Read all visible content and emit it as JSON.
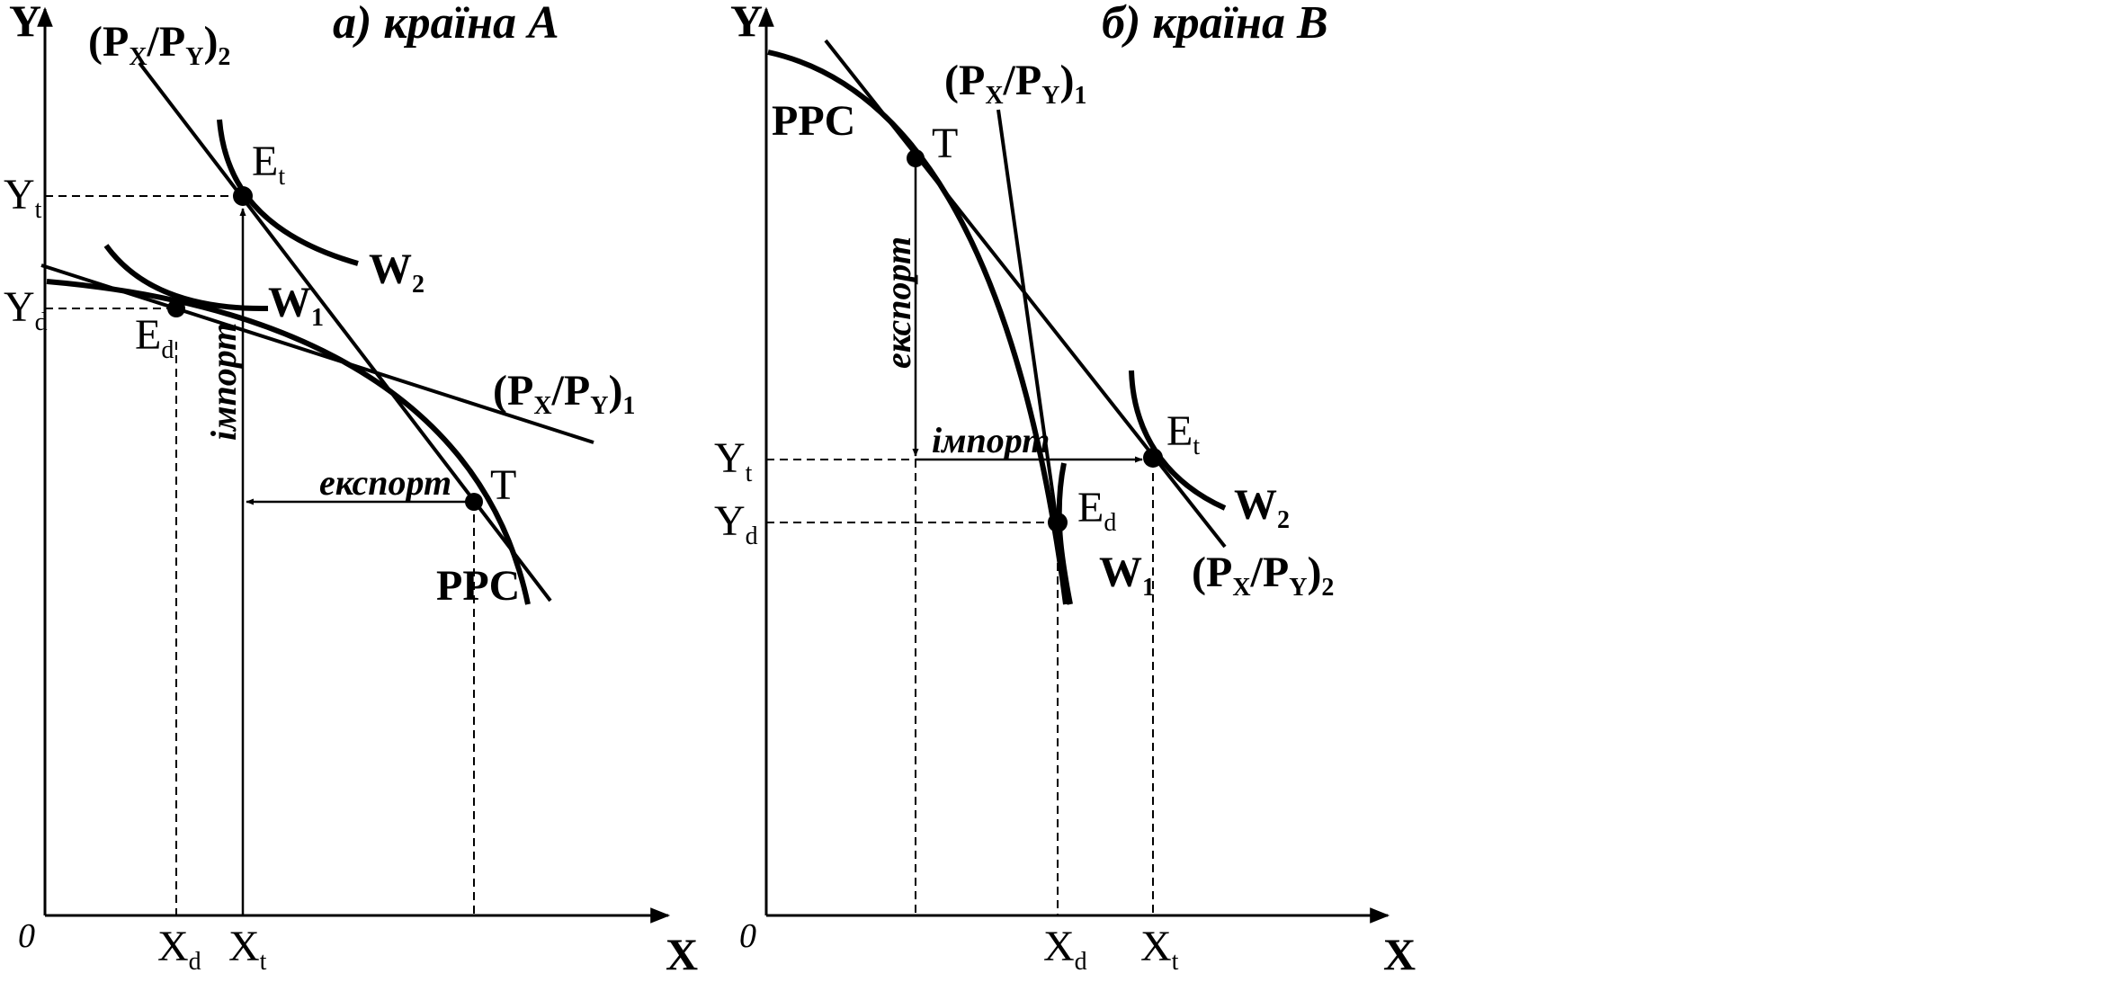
{
  "panel_a": {
    "title": "а) країна А",
    "y_axis": "Y",
    "x_axis": "X",
    "origin": "0",
    "ppc_label": "PPC",
    "w1_label": {
      "main": "W",
      "sub": "1"
    },
    "w2_label": {
      "main": "W",
      "sub": "2"
    },
    "price_line_1": {
      "p": "(P",
      "px": "X",
      "slash": "/P",
      "py": "Y",
      "close": ")",
      "idx": "1"
    },
    "price_line_2": {
      "p": "(P",
      "px": "X",
      "slash": "/P",
      "py": "Y",
      "close": ")",
      "idx": "2"
    },
    "points": {
      "et": {
        "main": "E",
        "sub": "t"
      },
      "ed": {
        "main": "E",
        "sub": "d"
      },
      "t": "T"
    },
    "ticks": {
      "yt": {
        "main": "Y",
        "sub": "t"
      },
      "yd": {
        "main": "Y",
        "sub": "d"
      },
      "xd": {
        "main": "X",
        "sub": "d"
      },
      "xt": {
        "main": "X",
        "sub": "t"
      }
    },
    "import_label": "імпорт",
    "export_label": "експорт"
  },
  "panel_b": {
    "title": "б) країна В",
    "y_axis": "Y",
    "x_axis": "X",
    "origin": "0",
    "ppc_label": "PPC",
    "w1_label": {
      "main": "W",
      "sub": "1"
    },
    "w2_label": {
      "main": "W",
      "sub": "2"
    },
    "price_line_1": {
      "p": "(P",
      "px": "X",
      "slash": "/P",
      "py": "Y",
      "close": ")",
      "idx": "1"
    },
    "price_line_2": {
      "p": "(P",
      "px": "X",
      "slash": "/P",
      "py": "Y",
      "close": ")",
      "idx": "2"
    },
    "points": {
      "et": {
        "main": "E",
        "sub": "t"
      },
      "ed": {
        "main": "E",
        "sub": "d"
      },
      "t": "T"
    },
    "ticks": {
      "yt": {
        "main": "Y",
        "sub": "t"
      },
      "yd": {
        "main": "Y",
        "sub": "d"
      },
      "xd": {
        "main": "X",
        "sub": "d"
      },
      "xt": {
        "main": "X",
        "sub": "t"
      }
    },
    "import_label": "імпорт",
    "export_label": "експорт"
  }
}
